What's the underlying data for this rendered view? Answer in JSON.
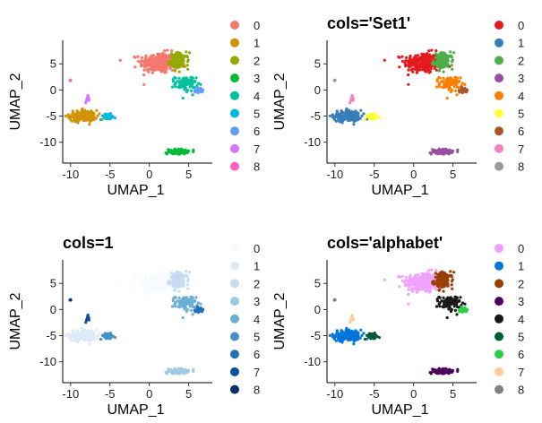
{
  "chart_data": [
    {
      "type": "scatter",
      "title": "",
      "xlabel": "UMAP_1",
      "ylabel": "UMAP_2",
      "xlim": [
        -11,
        8
      ],
      "ylim": [
        -14,
        9.5
      ],
      "xticks": [
        "-10",
        "-5",
        "0",
        "5"
      ],
      "yticks": [
        "5",
        "0",
        "-5",
        "-10"
      ],
      "legend": {
        "labels": [
          "0",
          "1",
          "2",
          "3",
          "4",
          "5",
          "6",
          "7",
          "8"
        ],
        "colors": [
          "#F8766D",
          "#D39200",
          "#93AA00",
          "#00BA38",
          "#00C19F",
          "#00B9E3",
          "#619CFF",
          "#DB72FB",
          "#FF61C3"
        ]
      }
    },
    {
      "type": "scatter",
      "title": "cols='Set1'",
      "xlabel": "UMAP_1",
      "ylabel": "UMAP_2",
      "xlim": [
        -11,
        8
      ],
      "ylim": [
        -14,
        9.5
      ],
      "xticks": [
        "-10",
        "-5",
        "0",
        "5"
      ],
      "yticks": [
        "5",
        "0",
        "-5",
        "-10"
      ],
      "legend": {
        "labels": [
          "0",
          "1",
          "2",
          "3",
          "4",
          "5",
          "6",
          "7",
          "8"
        ],
        "colors": [
          "#E41A1C",
          "#377EB8",
          "#4DAF4A",
          "#984EA3",
          "#FF7F00",
          "#FFFF33",
          "#A65628",
          "#F781BF",
          "#999999"
        ]
      }
    },
    {
      "type": "scatter",
      "title": "cols=1",
      "xlabel": "UMAP_1",
      "ylabel": "UMAP_2",
      "xlim": [
        -11,
        8
      ],
      "ylim": [
        -14,
        9.5
      ],
      "xticks": [
        "-10",
        "-5",
        "0",
        "5"
      ],
      "yticks": [
        "5",
        "0",
        "-5",
        "-10"
      ],
      "legend": {
        "labels": [
          "0",
          "1",
          "2",
          "3",
          "4",
          "5",
          "6",
          "7",
          "8"
        ],
        "colors": [
          "#F7FBFF",
          "#DEEBF7",
          "#C6DBEF",
          "#9ECAE1",
          "#6BAED6",
          "#4292C6",
          "#2171B5",
          "#08519C",
          "#08306B"
        ]
      }
    },
    {
      "type": "scatter",
      "title": "cols='alphabet'",
      "xlabel": "UMAP_1",
      "ylabel": "UMAP_2",
      "xlim": [
        -11,
        8
      ],
      "ylim": [
        -14,
        9.5
      ],
      "xticks": [
        "-10",
        "-5",
        "0",
        "5"
      ],
      "yticks": [
        "5",
        "0",
        "-5",
        "-10"
      ],
      "legend": {
        "labels": [
          "0",
          "1",
          "2",
          "3",
          "4",
          "5",
          "6",
          "7",
          "8"
        ],
        "colors": [
          "#F0A0FF",
          "#0075DC",
          "#993F00",
          "#4C005C",
          "#191919",
          "#005C31",
          "#2BCE48",
          "#FFCC99",
          "#808080"
        ]
      }
    }
  ],
  "clusters": [
    {
      "id": "0",
      "cx": 1.2,
      "cy": 5.2,
      "rx": 2.2,
      "ry": 1.8,
      "n": 260
    },
    {
      "id": "1",
      "cx": -8.4,
      "cy": -5.0,
      "rx": 1.6,
      "ry": 1.0,
      "n": 160
    },
    {
      "id": "2",
      "cx": 3.8,
      "cy": 5.6,
      "rx": 1.1,
      "ry": 1.4,
      "n": 110
    },
    {
      "id": "3",
      "cx": 3.6,
      "cy": -11.8,
      "rx": 1.2,
      "ry": 0.45,
      "n": 80
    },
    {
      "id": "4",
      "cx": 4.6,
      "cy": 1.2,
      "rx": 1.2,
      "ry": 1.3,
      "n": 90
    },
    {
      "id": "5",
      "cx": -5.3,
      "cy": -5.1,
      "rx": 0.9,
      "ry": 0.5,
      "n": 50
    },
    {
      "id": "6",
      "cx": 6.4,
      "cy": 0.0,
      "rx": 0.5,
      "ry": 0.4,
      "n": 30
    },
    {
      "id": "7",
      "cx": -7.9,
      "cy": -1.8,
      "rx": 0.2,
      "ry": 0.55,
      "n": 14
    },
    {
      "id": "8",
      "cx": -10.0,
      "cy": 1.8,
      "rx": 0.1,
      "ry": 0.12,
      "n": 5
    }
  ]
}
